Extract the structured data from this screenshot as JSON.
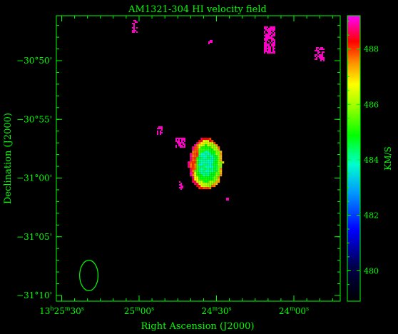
{
  "chart_data": {
    "type": "heatmap",
    "title": "AM1321-304   HI velocity field",
    "xlabel": "Right Ascension (J2000)",
    "ylabel": "Declination (J2000)",
    "colorbar_label": "KM/S",
    "x_ticks": [
      {
        "ra_sec": 30,
        "label_main": "13",
        "sup1": "h",
        "mid": "25",
        "sup2": "m",
        "tail": "30",
        "sup3": "s"
      },
      {
        "ra_sec": 0,
        "label_main": "",
        "sup1": "",
        "mid": "25",
        "sup2": "m",
        "tail": "00",
        "sup3": "s"
      },
      {
        "ra_sec": -30,
        "label_main": "",
        "sup1": "",
        "mid": "24",
        "sup2": "m",
        "tail": "30",
        "sup3": "s"
      },
      {
        "ra_sec": -60,
        "label_main": "",
        "sup1": "",
        "mid": "24",
        "sup2": "m",
        "tail": "00",
        "sup3": "s"
      }
    ],
    "y_ticks": [
      {
        "dec_arcmin": -50,
        "label": "−30°50'"
      },
      {
        "dec_arcmin": -55,
        "label": "−30°55'"
      },
      {
        "dec_arcmin": -60,
        "label": "−31°00'"
      },
      {
        "dec_arcmin": -65,
        "label": "−31°05'"
      },
      {
        "dec_arcmin": -70,
        "label": "−31°10'"
      }
    ],
    "colorbar": {
      "range_kms": [
        478.9,
        489.2
      ],
      "tick_labels": [
        "480",
        "482",
        "484",
        "486",
        "488"
      ],
      "tick_values": [
        480,
        482,
        484,
        486,
        488
      ]
    },
    "galaxy": {
      "center_ra_sec": -25.5,
      "center_dec_arcmin": -58.7,
      "velocity_range_kms": [
        483.5,
        489
      ],
      "gradient": "redshifted east (left), blueshifted west (right)"
    },
    "beam": {
      "ra_sec": 25,
      "dec_arcmin": -68.3,
      "major_arcmin": 2.6,
      "minor_arcmin": 1.5
    },
    "noise_patches_velocity_kms": 489
  }
}
